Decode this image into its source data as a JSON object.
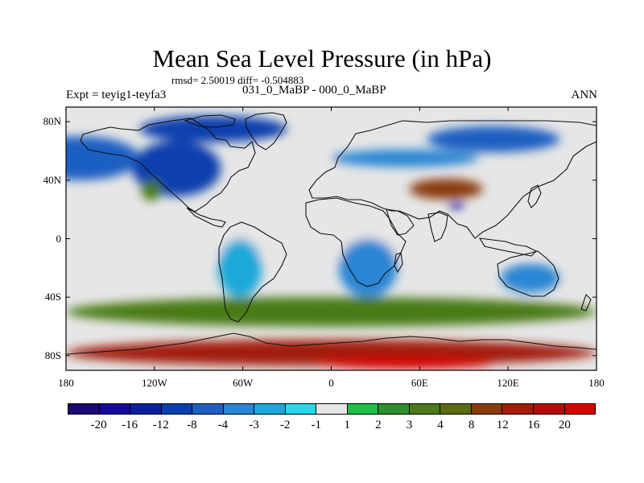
{
  "title": "Mean Sea Level Pressure (in hPa)",
  "stats": "rmsd= 2.50019 diff= -0.504883",
  "experiment_label": "Expt = teyig1-teyfa3",
  "comparison_label": "031_0_MaBP - 000_0_MaBP",
  "period_label": "ANN",
  "x_ticks": [
    "180",
    "120W",
    "60W",
    "0",
    "60E",
    "120E",
    "180"
  ],
  "y_ticks": [
    "80N",
    "40N",
    "0",
    "40S",
    "80S"
  ],
  "colorbar": {
    "levels": [
      "-20",
      "-16",
      "-12",
      "-8",
      "-4",
      "-3",
      "-2",
      "-1",
      "1",
      "2",
      "3",
      "4",
      "8",
      "12",
      "16",
      "20"
    ],
    "colors": [
      "#1b0a70",
      "#150aa0",
      "#0c1f9c",
      "#0a3fae",
      "#1f5fc2",
      "#2a86d4",
      "#1aa8d8",
      "#27d8e8",
      "#e6e6e6",
      "#20be44",
      "#2e8f2e",
      "#4a7a19",
      "#5c6a12",
      "#8a3a0c",
      "#a21c08",
      "#b80a0a",
      "#d60000"
    ]
  },
  "map_data": {
    "variable": "Mean Sea Level Pressure",
    "units": "hPa",
    "lon_range": [
      -180,
      180
    ],
    "lat_range": [
      -90,
      90
    ],
    "regions": [
      {
        "name": "north-pacific-low",
        "lon": -170,
        "lat": 55,
        "lon_extent": 80,
        "lat_extent": 30,
        "value": -8
      },
      {
        "name": "north-america-low",
        "lon": -105,
        "lat": 48,
        "lon_extent": 60,
        "lat_extent": 38,
        "value": -12
      },
      {
        "name": "arctic-low",
        "lon": -80,
        "lat": 75,
        "lon_extent": 100,
        "lat_extent": 18,
        "value": -12
      },
      {
        "name": "north-atlantic-high",
        "lon": -30,
        "lat": 45,
        "lon_extent": 60,
        "lat_extent": 30,
        "value": -1
      },
      {
        "name": "eurasia-band",
        "lon": 50,
        "lat": 55,
        "lon_extent": 100,
        "lat_extent": 12,
        "value": -4
      },
      {
        "name": "siberia-low",
        "lon": 110,
        "lat": 68,
        "lon_extent": 90,
        "lat_extent": 18,
        "value": -8
      },
      {
        "name": "central-asia-high",
        "lon": 78,
        "lat": 34,
        "lon_extent": 50,
        "lat_extent": 14,
        "value": 8
      },
      {
        "name": "south-asia-low",
        "lon": 85,
        "lat": 22,
        "lon_extent": 10,
        "lat_extent": 5,
        "value": -16
      },
      {
        "name": "west-north-america-high",
        "lon": -122,
        "lat": 33,
        "lon_extent": 14,
        "lat_extent": 14,
        "value": 3
      },
      {
        "name": "tropical-band",
        "lon": 0,
        "lat": 0,
        "lon_extent": 360,
        "lat_extent": 30,
        "value": -1
      },
      {
        "name": "africa-low",
        "lon": 25,
        "lat": -20,
        "lon_extent": 40,
        "lat_extent": 40,
        "value": -4
      },
      {
        "name": "australia-low",
        "lon": 135,
        "lat": -27,
        "lon_extent": 40,
        "lat_extent": 20,
        "value": -4
      },
      {
        "name": "south-america-low",
        "lon": -62,
        "lat": -20,
        "lon_extent": 30,
        "lat_extent": 40,
        "value": -3
      },
      {
        "name": "southern-ocean-band",
        "lon": 0,
        "lat": -50,
        "lon_extent": 360,
        "lat_extent": 20,
        "value": 3
      },
      {
        "name": "antarctic-high",
        "lon": 0,
        "lat": -78,
        "lon_extent": 360,
        "lat_extent": 18,
        "value": 12
      },
      {
        "name": "antarctic-core",
        "lon": 50,
        "lat": -85,
        "lon_extent": 120,
        "lat_extent": 8,
        "value": 20
      }
    ]
  }
}
